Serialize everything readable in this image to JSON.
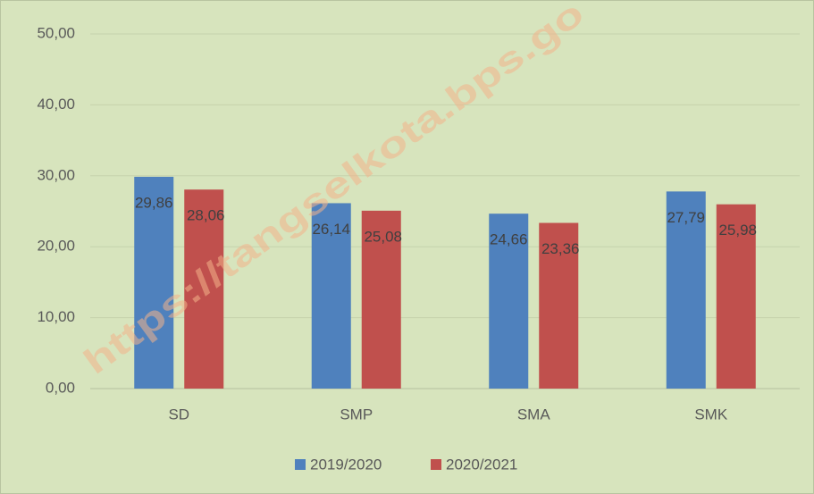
{
  "chart_data": {
    "type": "bar",
    "categories": [
      "SD",
      "SMP",
      "SMA",
      "SMK"
    ],
    "series": [
      {
        "name": "2019/2020",
        "color": "#4f81bd",
        "values": [
          29.86,
          26.14,
          24.66,
          27.79
        ],
        "value_labels": [
          "29,86",
          "26,14",
          "24,66",
          "27,79"
        ]
      },
      {
        "name": "2020/2021",
        "color": "#c0504d",
        "values": [
          28.06,
          25.08,
          23.36,
          25.98
        ],
        "value_labels": [
          "28,06",
          "25,08",
          "23,36",
          "25,98"
        ]
      }
    ],
    "ylim": [
      0,
      50
    ],
    "yticks": [
      {
        "value": 0,
        "label": "0,00"
      },
      {
        "value": 10,
        "label": "10,00"
      },
      {
        "value": 20,
        "label": "20,00"
      },
      {
        "value": 30,
        "label": "30,00"
      },
      {
        "value": 40,
        "label": "40,00"
      },
      {
        "value": 50,
        "label": "50,00"
      }
    ],
    "grid": true,
    "legend": "bottom",
    "watermark": "https://tangselkota.bps.go"
  }
}
